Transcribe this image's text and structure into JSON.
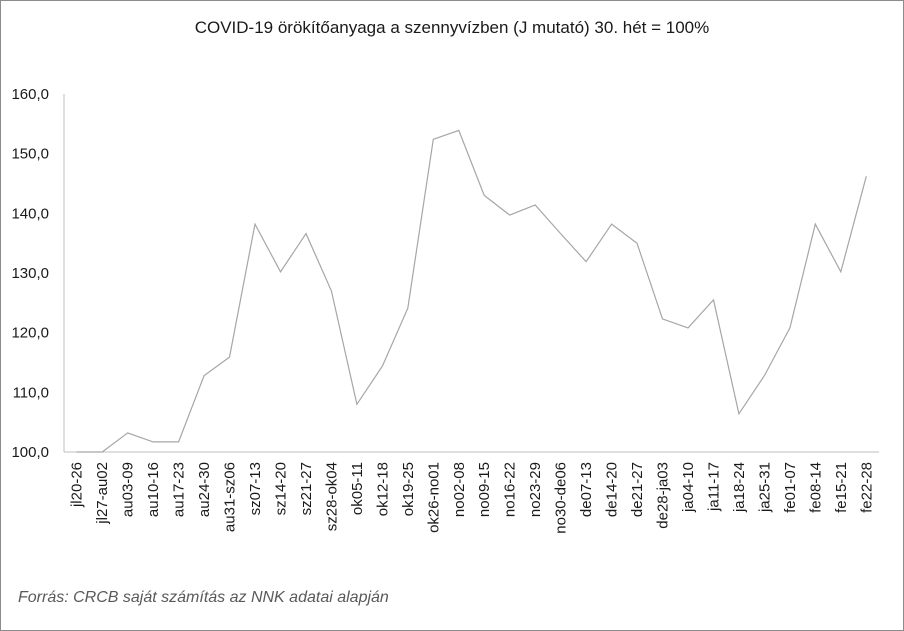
{
  "chart_data": {
    "type": "line",
    "title": "COVID-19 örökítőanyaga a szennyvízben (J mutató) 30. hét = 100%",
    "xlabel": "",
    "ylabel": "",
    "ylim": [
      100,
      160
    ],
    "yticks": [
      "100,0",
      "110,0",
      "120,0",
      "130,0",
      "140,0",
      "150,0",
      "160,0"
    ],
    "grid": false,
    "legend": "none",
    "line_color": "#a6a6a6",
    "categories": [
      "jl20-26",
      "jl27-au02",
      "au03-09",
      "au10-16",
      "au17-23",
      "au24-30",
      "au31-sz06",
      "sz07-13",
      "sz14-20",
      "sz21-27",
      "sz28-ok04",
      "ok05-11",
      "ok12-18",
      "ok19-25",
      "ok26-no01",
      "no02-08",
      "no09-15",
      "no16-22",
      "no23-29",
      "no30-de06",
      "de07-13",
      "de14-20",
      "de21-27",
      "de28-ja03",
      "ja04-10",
      "ja11-17",
      "ja18-24",
      "ja25-31",
      "fe01-07",
      "fe08-14",
      "fe15-21",
      "fe22-28"
    ],
    "series": [
      {
        "values": [
          100.0,
          100.0,
          103.2,
          101.7,
          101.7,
          112.8,
          115.9,
          138.2,
          130.2,
          136.6,
          127.0,
          108.0,
          114.4,
          124.1,
          152.4,
          153.9,
          143.0,
          139.7,
          141.4,
          136.6,
          131.9,
          138.2,
          135.0,
          122.3,
          120.8,
          125.5,
          106.4,
          112.8,
          120.8,
          138.2,
          130.2,
          146.2
        ]
      }
    ]
  },
  "source_note": "Forrás: CRCB saját számítás az NNK adatai alapján"
}
